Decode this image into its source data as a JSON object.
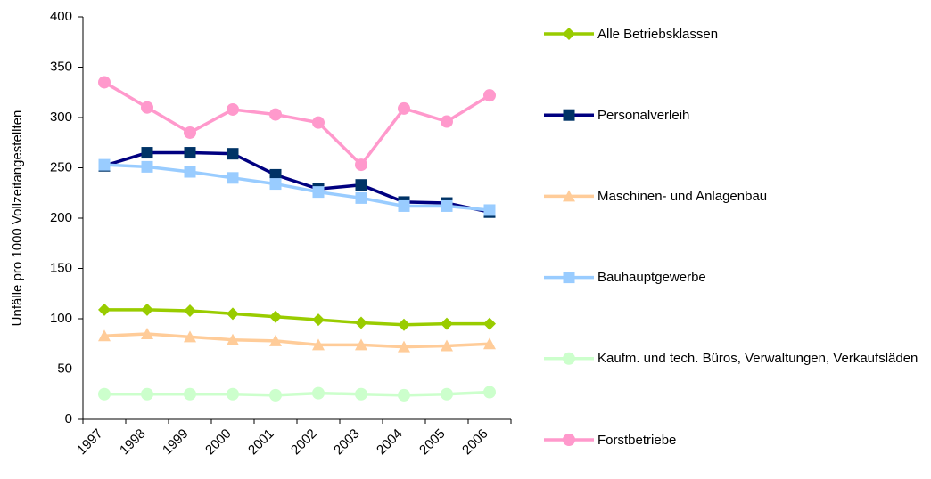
{
  "chart_data": {
    "type": "line",
    "y_label": "Unfälle pro 1000 Vollzeitangestellten",
    "categories": [
      "1997",
      "1998",
      "1999",
      "2000",
      "2001",
      "2002",
      "2003",
      "2004",
      "2005",
      "2006"
    ],
    "ylim": [
      0,
      400
    ],
    "yticks": [
      0,
      50,
      100,
      150,
      200,
      250,
      300,
      350,
      400
    ],
    "grid": false,
    "legend": "right",
    "series": [
      {
        "name": "Alle Betriebsklassen",
        "color": "#99cc00",
        "marker": "diamond",
        "marker_color": "#99cc00",
        "values": [
          109,
          109,
          108,
          105,
          102,
          99,
          96,
          94,
          95,
          95
        ]
      },
      {
        "name": "Personalverleih",
        "color": "#000080",
        "marker": "square",
        "marker_color": "#003366",
        "values": [
          252,
          265,
          265,
          264,
          243,
          229,
          233,
          216,
          215,
          206
        ]
      },
      {
        "name": "Maschinen- und Anlagenbau",
        "color": "#ffcc99",
        "marker": "triangle",
        "marker_color": "#ffcc99",
        "values": [
          83,
          85,
          82,
          79,
          78,
          74,
          74,
          72,
          73,
          75
        ]
      },
      {
        "name": "Bauhauptgewerbe",
        "color": "#99ccff",
        "marker": "square",
        "marker_color": "#99ccff",
        "values": [
          253,
          251,
          246,
          240,
          234,
          226,
          220,
          212,
          212,
          208
        ]
      },
      {
        "name": "Kaufm. und tech. Büros, Verwaltungen, Verkaufsläden",
        "color": "#ccffcc",
        "marker": "circle",
        "marker_color": "#ccffcc",
        "values": [
          25,
          25,
          25,
          25,
          24,
          26,
          25,
          24,
          25,
          27
        ]
      },
      {
        "name": "Forstbetriebe",
        "color": "#ff99cc",
        "marker": "circle",
        "marker_color": "#ff99cc",
        "values": [
          335,
          310,
          285,
          308,
          303,
          295,
          253,
          309,
          296,
          322
        ]
      }
    ]
  }
}
